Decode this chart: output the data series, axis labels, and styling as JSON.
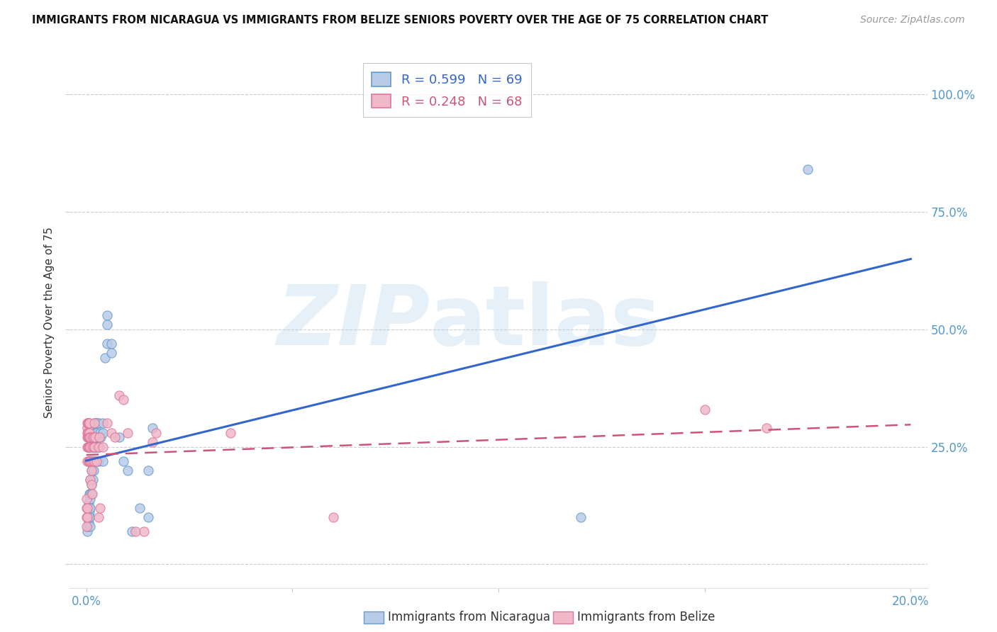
{
  "title": "IMMIGRANTS FROM NICARAGUA VS IMMIGRANTS FROM BELIZE SENIORS POVERTY OVER THE AGE OF 75 CORRELATION CHART",
  "source": "Source: ZipAtlas.com",
  "ylabel": "Seniors Poverty Over the Age of 75",
  "watermark_line1": "ZIP",
  "watermark_line2": "atlas",
  "legend_nic_R": 0.599,
  "legend_nic_N": 69,
  "legend_bel_R": 0.248,
  "legend_bel_N": 68,
  "nicaragua_scatter": [
    [
      0.0002,
      0.07
    ],
    [
      0.0003,
      0.1
    ],
    [
      0.0004,
      0.08
    ],
    [
      0.0005,
      0.12
    ],
    [
      0.0005,
      0.09
    ],
    [
      0.0006,
      0.1
    ],
    [
      0.0006,
      0.13
    ],
    [
      0.0007,
      0.11
    ],
    [
      0.0007,
      0.15
    ],
    [
      0.0008,
      0.1
    ],
    [
      0.0008,
      0.12
    ],
    [
      0.0009,
      0.14
    ],
    [
      0.001,
      0.08
    ],
    [
      0.001,
      0.12
    ],
    [
      0.001,
      0.18
    ],
    [
      0.001,
      0.15
    ],
    [
      0.0012,
      0.2
    ],
    [
      0.0012,
      0.17
    ],
    [
      0.0013,
      0.22
    ],
    [
      0.0013,
      0.15
    ],
    [
      0.0014,
      0.2
    ],
    [
      0.0015,
      0.27
    ],
    [
      0.0015,
      0.22
    ],
    [
      0.0016,
      0.25
    ],
    [
      0.0016,
      0.18
    ],
    [
      0.0017,
      0.28
    ],
    [
      0.0017,
      0.22
    ],
    [
      0.0018,
      0.25
    ],
    [
      0.0018,
      0.2
    ],
    [
      0.0019,
      0.27
    ],
    [
      0.002,
      0.3
    ],
    [
      0.002,
      0.22
    ],
    [
      0.002,
      0.25
    ],
    [
      0.0021,
      0.28
    ],
    [
      0.0021,
      0.3
    ],
    [
      0.0022,
      0.27
    ],
    [
      0.0022,
      0.25
    ],
    [
      0.0023,
      0.3
    ],
    [
      0.0024,
      0.28
    ],
    [
      0.0025,
      0.25
    ],
    [
      0.0025,
      0.22
    ],
    [
      0.0026,
      0.27
    ],
    [
      0.0027,
      0.3
    ],
    [
      0.0028,
      0.25
    ],
    [
      0.003,
      0.22
    ],
    [
      0.003,
      0.27
    ],
    [
      0.003,
      0.3
    ],
    [
      0.0032,
      0.25
    ],
    [
      0.0033,
      0.28
    ],
    [
      0.0035,
      0.27
    ],
    [
      0.004,
      0.28
    ],
    [
      0.004,
      0.3
    ],
    [
      0.004,
      0.22
    ],
    [
      0.0045,
      0.44
    ],
    [
      0.005,
      0.47
    ],
    [
      0.005,
      0.51
    ],
    [
      0.005,
      0.53
    ],
    [
      0.006,
      0.45
    ],
    [
      0.006,
      0.47
    ],
    [
      0.008,
      0.27
    ],
    [
      0.009,
      0.22
    ],
    [
      0.01,
      0.2
    ],
    [
      0.011,
      0.07
    ],
    [
      0.013,
      0.12
    ],
    [
      0.015,
      0.1
    ],
    [
      0.015,
      0.2
    ],
    [
      0.016,
      0.29
    ],
    [
      0.12,
      0.1
    ],
    [
      0.175,
      0.84
    ]
  ],
  "belize_scatter": [
    [
      5e-05,
      0.1
    ],
    [
      8e-05,
      0.12
    ],
    [
      0.0001,
      0.08
    ],
    [
      0.0001,
      0.14
    ],
    [
      0.0002,
      0.1
    ],
    [
      0.0002,
      0.12
    ],
    [
      0.0002,
      0.27
    ],
    [
      0.0002,
      0.29
    ],
    [
      0.0003,
      0.28
    ],
    [
      0.0003,
      0.25
    ],
    [
      0.0003,
      0.3
    ],
    [
      0.0003,
      0.22
    ],
    [
      0.0004,
      0.27
    ],
    [
      0.0004,
      0.25
    ],
    [
      0.0004,
      0.28
    ],
    [
      0.0004,
      0.3
    ],
    [
      0.0005,
      0.27
    ],
    [
      0.0005,
      0.22
    ],
    [
      0.0005,
      0.3
    ],
    [
      0.0005,
      0.25
    ],
    [
      0.0005,
      0.28
    ],
    [
      0.0006,
      0.27
    ],
    [
      0.0006,
      0.25
    ],
    [
      0.0006,
      0.3
    ],
    [
      0.0006,
      0.22
    ],
    [
      0.0007,
      0.27
    ],
    [
      0.0007,
      0.28
    ],
    [
      0.0007,
      0.25
    ],
    [
      0.0007,
      0.3
    ],
    [
      0.0008,
      0.27
    ],
    [
      0.0008,
      0.22
    ],
    [
      0.0009,
      0.25
    ],
    [
      0.001,
      0.27
    ],
    [
      0.001,
      0.22
    ],
    [
      0.001,
      0.18
    ],
    [
      0.0012,
      0.2
    ],
    [
      0.0012,
      0.17
    ],
    [
      0.0013,
      0.22
    ],
    [
      0.0014,
      0.25
    ],
    [
      0.0015,
      0.27
    ],
    [
      0.0015,
      0.15
    ],
    [
      0.0016,
      0.22
    ],
    [
      0.0017,
      0.25
    ],
    [
      0.0018,
      0.27
    ],
    [
      0.002,
      0.22
    ],
    [
      0.002,
      0.25
    ],
    [
      0.002,
      0.3
    ],
    [
      0.0022,
      0.27
    ],
    [
      0.0025,
      0.22
    ],
    [
      0.003,
      0.25
    ],
    [
      0.003,
      0.1
    ],
    [
      0.0032,
      0.27
    ],
    [
      0.0033,
      0.12
    ],
    [
      0.004,
      0.25
    ],
    [
      0.005,
      0.3
    ],
    [
      0.006,
      0.28
    ],
    [
      0.007,
      0.27
    ],
    [
      0.008,
      0.36
    ],
    [
      0.009,
      0.35
    ],
    [
      0.01,
      0.28
    ],
    [
      0.012,
      0.07
    ],
    [
      0.014,
      0.07
    ],
    [
      0.016,
      0.26
    ],
    [
      0.017,
      0.28
    ],
    [
      0.035,
      0.28
    ],
    [
      0.06,
      0.1
    ],
    [
      0.15,
      0.33
    ],
    [
      0.165,
      0.29
    ]
  ],
  "x_ticks": [
    0.0,
    0.05,
    0.1,
    0.15,
    0.2
  ],
  "x_tick_labels_bottom": [
    "0.0%",
    "",
    "",
    "",
    "20.0%"
  ],
  "y_ticks": [
    0.0,
    0.25,
    0.5,
    0.75,
    1.0
  ],
  "y_tick_labels_right": [
    "",
    "25.0%",
    "50.0%",
    "75.0%",
    "100.0%"
  ],
  "xlim": [
    -0.004,
    0.204
  ],
  "ylim": [
    -0.05,
    1.08
  ],
  "nic_line_color": "#3366cc",
  "bel_line_color": "#cc5577",
  "scatter_nic_face": "#b8cce8",
  "scatter_bel_face": "#f0b8c8",
  "scatter_nic_edge": "#6699cc",
  "scatter_bel_edge": "#dd7799",
  "bg_color": "#ffffff",
  "grid_color": "#cccccc",
  "tick_color": "#5599cc",
  "title_color": "#111111",
  "source_color": "#999999",
  "ylabel_color": "#333333",
  "watermark_color": "#b8d4ee",
  "watermark_alpha": 0.35,
  "legend_label_nic": "Immigrants from Nicaragua",
  "legend_label_bel": "Immigrants from Belize"
}
